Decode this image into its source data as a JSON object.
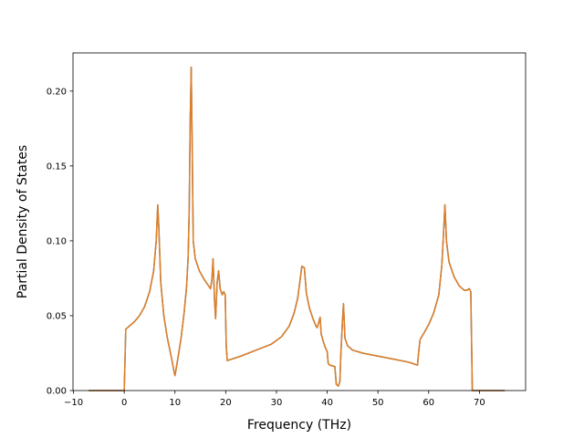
{
  "chart_data": {
    "type": "line",
    "title": "",
    "xlabel": "Frequency (THz)",
    "ylabel": "Partial Density of States",
    "xlim": [
      -10.1,
      79.1
    ],
    "ylim": [
      0.0,
      0.2255
    ],
    "xticks": [
      -10,
      0,
      10,
      20,
      30,
      40,
      50,
      60,
      70
    ],
    "xtick_labels": [
      "−10",
      "0",
      "10",
      "20",
      "30",
      "40",
      "50",
      "60",
      "70"
    ],
    "yticks": [
      0.0,
      0.05,
      0.1,
      0.15,
      0.2
    ],
    "ytick_labels": [
      "0.00",
      "0.05",
      "0.10",
      "0.15",
      "0.20"
    ],
    "grid": false,
    "legend": "none",
    "series": [
      {
        "color": "#1f77b4",
        "points": [
          [
            -7.0,
            0.0
          ],
          [
            -0.2,
            0.0
          ],
          [
            0.0,
            0.0
          ],
          [
            0.3,
            0.041
          ],
          [
            1.0,
            0.043
          ],
          [
            2.0,
            0.046
          ],
          [
            3.0,
            0.05
          ],
          [
            4.0,
            0.056
          ],
          [
            5.0,
            0.066
          ],
          [
            5.8,
            0.08
          ],
          [
            6.3,
            0.1
          ],
          [
            6.6,
            0.124
          ],
          [
            6.8,
            0.11
          ],
          [
            7.2,
            0.072
          ],
          [
            7.8,
            0.05
          ],
          [
            8.5,
            0.035
          ],
          [
            9.3,
            0.022
          ],
          [
            9.8,
            0.013
          ],
          [
            10.0,
            0.01
          ],
          [
            10.5,
            0.02
          ],
          [
            11.2,
            0.035
          ],
          [
            11.8,
            0.052
          ],
          [
            12.3,
            0.07
          ],
          [
            12.6,
            0.09
          ],
          [
            12.8,
            0.12
          ],
          [
            13.0,
            0.18
          ],
          [
            13.2,
            0.216
          ],
          [
            13.4,
            0.16
          ],
          [
            13.6,
            0.1
          ],
          [
            14.0,
            0.088
          ],
          [
            14.8,
            0.08
          ],
          [
            15.8,
            0.074
          ],
          [
            16.6,
            0.07
          ],
          [
            17.0,
            0.068
          ],
          [
            17.3,
            0.075
          ],
          [
            17.5,
            0.088
          ],
          [
            17.8,
            0.06
          ],
          [
            18.0,
            0.048
          ],
          [
            18.3,
            0.072
          ],
          [
            18.6,
            0.08
          ],
          [
            18.9,
            0.068
          ],
          [
            19.3,
            0.064
          ],
          [
            19.6,
            0.066
          ],
          [
            19.9,
            0.064
          ],
          [
            20.1,
            0.03
          ],
          [
            20.3,
            0.02
          ],
          [
            23.0,
            0.023
          ],
          [
            26.0,
            0.027
          ],
          [
            29.0,
            0.031
          ],
          [
            31.0,
            0.036
          ],
          [
            32.5,
            0.043
          ],
          [
            33.5,
            0.052
          ],
          [
            34.2,
            0.062
          ],
          [
            34.7,
            0.075
          ],
          [
            35.0,
            0.083
          ],
          [
            35.5,
            0.082
          ],
          [
            35.9,
            0.065
          ],
          [
            36.5,
            0.055
          ],
          [
            37.2,
            0.048
          ],
          [
            37.8,
            0.043
          ],
          [
            38.0,
            0.042
          ],
          [
            38.3,
            0.045
          ],
          [
            38.6,
            0.049
          ],
          [
            38.8,
            0.038
          ],
          [
            39.2,
            0.033
          ],
          [
            39.6,
            0.029
          ],
          [
            40.0,
            0.026
          ],
          [
            40.2,
            0.018
          ],
          [
            40.5,
            0.017
          ],
          [
            41.5,
            0.016
          ],
          [
            41.8,
            0.004
          ],
          [
            42.2,
            0.003
          ],
          [
            42.5,
            0.006
          ],
          [
            42.7,
            0.025
          ],
          [
            43.0,
            0.046
          ],
          [
            43.2,
            0.058
          ],
          [
            43.5,
            0.035
          ],
          [
            44.0,
            0.03
          ],
          [
            45.0,
            0.027
          ],
          [
            47.0,
            0.025
          ],
          [
            50.0,
            0.023
          ],
          [
            53.0,
            0.021
          ],
          [
            56.0,
            0.019
          ],
          [
            57.8,
            0.017
          ],
          [
            58.0,
            0.025
          ],
          [
            58.3,
            0.034
          ],
          [
            59.0,
            0.038
          ],
          [
            60.0,
            0.044
          ],
          [
            61.0,
            0.052
          ],
          [
            62.0,
            0.064
          ],
          [
            62.6,
            0.084
          ],
          [
            63.0,
            0.11
          ],
          [
            63.2,
            0.124
          ],
          [
            63.5,
            0.1
          ],
          [
            64.0,
            0.086
          ],
          [
            65.0,
            0.076
          ],
          [
            66.0,
            0.07
          ],
          [
            67.0,
            0.067
          ],
          [
            67.5,
            0.067
          ],
          [
            68.0,
            0.068
          ],
          [
            68.3,
            0.066
          ],
          [
            68.6,
            0.0
          ],
          [
            70.0,
            0.0
          ],
          [
            75.0,
            0.0
          ]
        ]
      },
      {
        "color": "#e37e23",
        "points": [
          [
            -7.0,
            0.0
          ],
          [
            -0.2,
            0.0
          ],
          [
            0.0,
            0.0
          ],
          [
            0.3,
            0.041
          ],
          [
            1.0,
            0.043
          ],
          [
            2.0,
            0.046
          ],
          [
            3.0,
            0.05
          ],
          [
            4.0,
            0.056
          ],
          [
            5.0,
            0.066
          ],
          [
            5.8,
            0.08
          ],
          [
            6.3,
            0.1
          ],
          [
            6.6,
            0.124
          ],
          [
            6.8,
            0.11
          ],
          [
            7.2,
            0.072
          ],
          [
            7.8,
            0.05
          ],
          [
            8.5,
            0.035
          ],
          [
            9.3,
            0.022
          ],
          [
            9.8,
            0.013
          ],
          [
            10.0,
            0.01
          ],
          [
            10.5,
            0.02
          ],
          [
            11.2,
            0.035
          ],
          [
            11.8,
            0.052
          ],
          [
            12.3,
            0.07
          ],
          [
            12.6,
            0.09
          ],
          [
            12.8,
            0.12
          ],
          [
            13.0,
            0.18
          ],
          [
            13.2,
            0.216
          ],
          [
            13.4,
            0.16
          ],
          [
            13.6,
            0.1
          ],
          [
            14.0,
            0.088
          ],
          [
            14.8,
            0.08
          ],
          [
            15.8,
            0.074
          ],
          [
            16.6,
            0.07
          ],
          [
            17.0,
            0.068
          ],
          [
            17.3,
            0.075
          ],
          [
            17.5,
            0.088
          ],
          [
            17.8,
            0.06
          ],
          [
            18.0,
            0.048
          ],
          [
            18.3,
            0.072
          ],
          [
            18.6,
            0.08
          ],
          [
            18.9,
            0.068
          ],
          [
            19.3,
            0.064
          ],
          [
            19.6,
            0.066
          ],
          [
            19.9,
            0.064
          ],
          [
            20.1,
            0.03
          ],
          [
            20.3,
            0.02
          ],
          [
            23.0,
            0.023
          ],
          [
            26.0,
            0.027
          ],
          [
            29.0,
            0.031
          ],
          [
            31.0,
            0.036
          ],
          [
            32.5,
            0.043
          ],
          [
            33.5,
            0.052
          ],
          [
            34.2,
            0.062
          ],
          [
            34.7,
            0.075
          ],
          [
            35.0,
            0.083
          ],
          [
            35.5,
            0.082
          ],
          [
            35.9,
            0.065
          ],
          [
            36.5,
            0.055
          ],
          [
            37.2,
            0.048
          ],
          [
            37.8,
            0.043
          ],
          [
            38.0,
            0.042
          ],
          [
            38.3,
            0.045
          ],
          [
            38.6,
            0.049
          ],
          [
            38.8,
            0.038
          ],
          [
            39.2,
            0.033
          ],
          [
            39.6,
            0.029
          ],
          [
            40.0,
            0.026
          ],
          [
            40.2,
            0.018
          ],
          [
            40.5,
            0.017
          ],
          [
            41.5,
            0.016
          ],
          [
            41.8,
            0.004
          ],
          [
            42.2,
            0.003
          ],
          [
            42.5,
            0.006
          ],
          [
            42.7,
            0.025
          ],
          [
            43.0,
            0.046
          ],
          [
            43.2,
            0.058
          ],
          [
            43.5,
            0.035
          ],
          [
            44.0,
            0.03
          ],
          [
            45.0,
            0.027
          ],
          [
            47.0,
            0.025
          ],
          [
            50.0,
            0.023
          ],
          [
            53.0,
            0.021
          ],
          [
            56.0,
            0.019
          ],
          [
            57.8,
            0.017
          ],
          [
            58.0,
            0.025
          ],
          [
            58.3,
            0.034
          ],
          [
            59.0,
            0.038
          ],
          [
            60.0,
            0.044
          ],
          [
            61.0,
            0.052
          ],
          [
            62.0,
            0.064
          ],
          [
            62.6,
            0.084
          ],
          [
            63.0,
            0.11
          ],
          [
            63.2,
            0.124
          ],
          [
            63.5,
            0.1
          ],
          [
            64.0,
            0.086
          ],
          [
            65.0,
            0.076
          ],
          [
            66.0,
            0.07
          ],
          [
            67.0,
            0.067
          ],
          [
            67.5,
            0.067
          ],
          [
            68.0,
            0.068
          ],
          [
            68.3,
            0.066
          ],
          [
            68.6,
            0.0
          ],
          [
            70.0,
            0.0
          ],
          [
            75.0,
            0.0
          ]
        ]
      }
    ]
  }
}
